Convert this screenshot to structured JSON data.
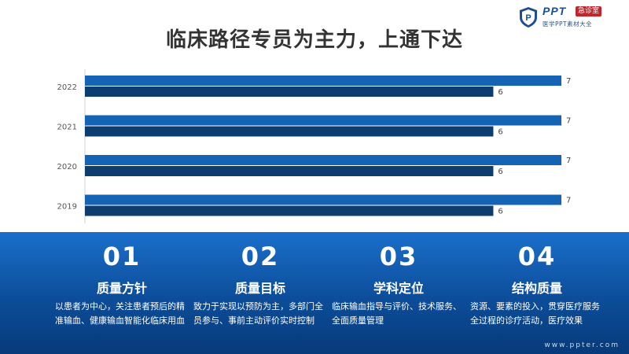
{
  "title": "临床路径专员为主力，上通下达",
  "logo": {
    "brand": "PPT",
    "tag": "急诊室",
    "subtitle": "医学PPT素材大全",
    "icon": "shield-p-icon"
  },
  "chart_data": {
    "type": "bar",
    "orientation": "horizontal",
    "categories": [
      "2022",
      "2021",
      "2020",
      "2019"
    ],
    "series": [
      {
        "values": [
          7,
          7,
          7,
          7
        ],
        "color": "#1563b4"
      },
      {
        "values": [
          6,
          6,
          6,
          6
        ],
        "color": "#0d3c6e"
      }
    ],
    "xlim": [
      0,
      7
    ],
    "grid": false,
    "legend": "none"
  },
  "columns": [
    {
      "num": "01",
      "head": "质量方针",
      "desc": "以患者为中心，关注患者预后的精准输血、健康输血智能化临床用血"
    },
    {
      "num": "02",
      "head": "质量目标",
      "desc": "致力于实现以预防为主，多部门全员参与、事前主动评价实时控制"
    },
    {
      "num": "03",
      "head": "学科定位",
      "desc": "临床输血指导与评价、技术服务、全面质量管理"
    },
    {
      "num": "04",
      "head": "结构质量",
      "desc": "资源、要素的投入，贯穿医疗服务全过程的诊疗活动，医疗效果"
    }
  ],
  "footer": {
    "url": "www.ppter.com"
  }
}
